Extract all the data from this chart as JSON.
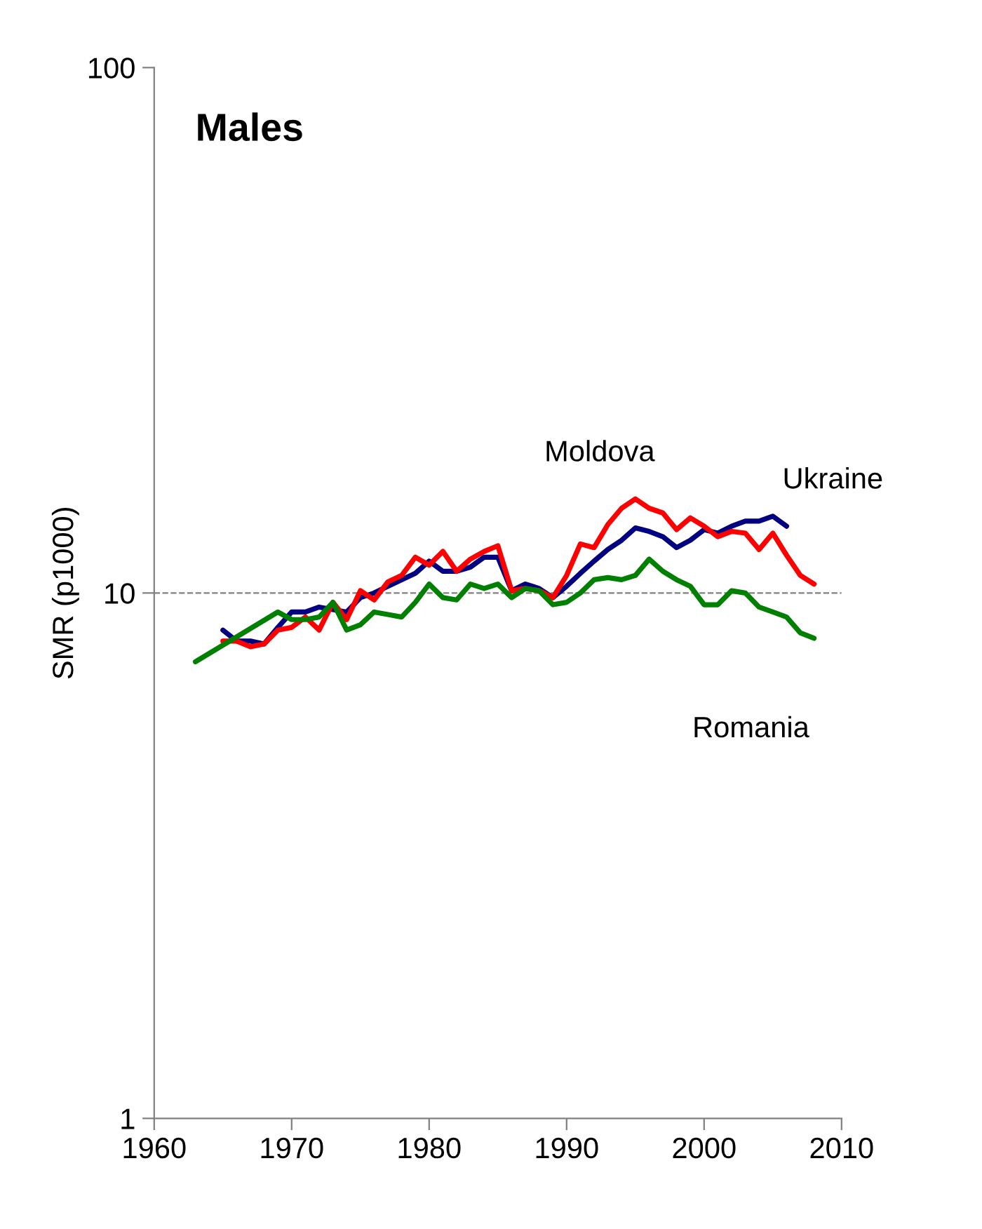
{
  "chart_data": {
    "type": "line",
    "title": "Males",
    "ylabel": "SMR (p1000)",
    "xlim": [
      1960,
      2010
    ],
    "xticks": [
      1960,
      1970,
      1980,
      1990,
      2000,
      2010
    ],
    "ylim": [
      1,
      100
    ],
    "yticks": [
      1,
      10,
      100
    ],
    "log": true,
    "grid": false,
    "legend": false,
    "marker": "none",
    "line_style": "solid",
    "ref_lines": [
      {
        "axis": "y",
        "value": 10,
        "color": "#808080",
        "line_style": "dashed"
      }
    ],
    "series": [
      {
        "name": "Ukraine",
        "color": "#000080",
        "x": [
          1965,
          1966,
          1967,
          1968,
          1969,
          1970,
          1971,
          1972,
          1973,
          1974,
          1975,
          1976,
          1977,
          1978,
          1979,
          1980,
          1981,
          1982,
          1983,
          1984,
          1985,
          1986,
          1987,
          1988,
          1989,
          1990,
          1991,
          1992,
          1993,
          1994,
          1995,
          1996,
          1997,
          1998,
          1999,
          2000,
          2001,
          2002,
          2003,
          2004,
          2005,
          2006
        ],
        "values": [
          8.5,
          8.1,
          8.1,
          8.0,
          8.6,
          9.2,
          9.2,
          9.4,
          9.3,
          9.2,
          9.8,
          10.0,
          10.3,
          10.6,
          10.9,
          11.5,
          11.0,
          11.0,
          11.2,
          11.7,
          11.7,
          10.1,
          10.4,
          10.2,
          9.8,
          10.3,
          10.9,
          11.5,
          12.1,
          12.6,
          13.3,
          13.1,
          12.8,
          12.2,
          12.6,
          13.2,
          13.0,
          13.4,
          13.7,
          13.7,
          14.0,
          13.4
        ]
      },
      {
        "name": "Moldova",
        "color": "#ff0000",
        "x": [
          1965,
          1966,
          1967,
          1968,
          1969,
          1970,
          1971,
          1972,
          1973,
          1974,
          1975,
          1976,
          1977,
          1978,
          1979,
          1980,
          1981,
          1982,
          1983,
          1984,
          1985,
          1986,
          1987,
          1988,
          1989,
          1990,
          1991,
          1992,
          1993,
          1994,
          1995,
          1996,
          1997,
          1998,
          1999,
          2000,
          2001,
          2002,
          2003,
          2004,
          2005,
          2006,
          2007,
          2008
        ],
        "values": [
          8.1,
          8.1,
          7.9,
          8.0,
          8.5,
          8.6,
          9.0,
          8.5,
          9.6,
          8.9,
          10.1,
          9.7,
          10.5,
          10.8,
          11.7,
          11.3,
          12.0,
          11.0,
          11.6,
          12.0,
          12.3,
          10.1,
          10.2,
          10.1,
          9.8,
          10.8,
          12.4,
          12.2,
          13.5,
          14.5,
          15.1,
          14.5,
          14.2,
          13.2,
          13.9,
          13.4,
          12.8,
          13.1,
          13.0,
          12.1,
          13.0,
          11.8,
          10.8,
          10.4
        ]
      },
      {
        "name": "Romania",
        "color": "#008000",
        "x": [
          1963,
          1969,
          1970,
          1971,
          1972,
          1973,
          1974,
          1975,
          1976,
          1977,
          1978,
          1979,
          1980,
          1981,
          1982,
          1983,
          1984,
          1985,
          1986,
          1987,
          1988,
          1989,
          1990,
          1991,
          1992,
          1993,
          1994,
          1995,
          1996,
          1997,
          1998,
          1999,
          2000,
          2001,
          2002,
          2003,
          2004,
          2005,
          2006,
          2007,
          2008
        ],
        "values": [
          7.4,
          9.2,
          8.9,
          8.9,
          9.0,
          9.6,
          8.5,
          8.7,
          9.2,
          9.1,
          9.0,
          9.6,
          10.4,
          9.8,
          9.7,
          10.4,
          10.2,
          10.4,
          9.8,
          10.2,
          10.1,
          9.5,
          9.6,
          10.0,
          10.6,
          10.7,
          10.6,
          10.8,
          11.6,
          11.0,
          10.6,
          10.3,
          9.5,
          9.5,
          10.1,
          10.0,
          9.4,
          9.2,
          9.0,
          8.4,
          8.2
        ]
      }
    ]
  }
}
